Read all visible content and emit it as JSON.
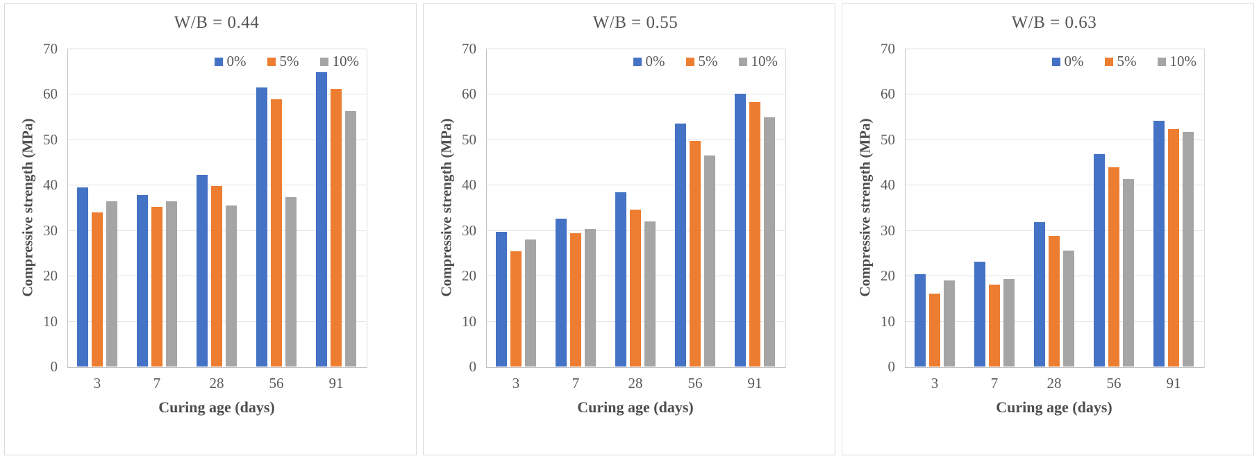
{
  "figure": {
    "description": "Three grouped bar charts of concrete compressive strength vs curing age for different water/binder ratios",
    "background": "#ffffff",
    "panel_border": "#d9d9d9"
  },
  "chart_data": [
    {
      "type": "bar",
      "title": "W/B = 0.44",
      "xlabel": "Curing age (days)",
      "ylabel": "Compressive strength (MPa)",
      "ylim": [
        0,
        70
      ],
      "yticks": [
        0,
        10,
        20,
        30,
        40,
        50,
        60,
        70
      ],
      "grid": true,
      "legend_position": "top-right-inside",
      "categories": [
        "3",
        "7",
        "28",
        "56",
        "91"
      ],
      "series": [
        {
          "name": "0%",
          "color": "#4472C4",
          "values": [
            39.5,
            37.7,
            42.2,
            61.4,
            64.8
          ]
        },
        {
          "name": "5%",
          "color": "#ED7D31",
          "values": [
            34.0,
            35.2,
            39.8,
            58.8,
            61.2
          ]
        },
        {
          "name": "10%",
          "color": "#A5A5A5",
          "values": [
            36.3,
            36.4,
            35.4,
            37.3,
            56.2
          ]
        }
      ]
    },
    {
      "type": "bar",
      "title": "W/B = 0.55",
      "xlabel": "Curing age (days)",
      "ylabel": "Compressive strength (MPa)",
      "ylim": [
        0,
        70
      ],
      "yticks": [
        0,
        10,
        20,
        30,
        40,
        50,
        60,
        70
      ],
      "grid": true,
      "legend_position": "top-right-inside",
      "categories": [
        "3",
        "7",
        "28",
        "56",
        "91"
      ],
      "series": [
        {
          "name": "0%",
          "color": "#4472C4",
          "values": [
            29.6,
            32.6,
            38.4,
            53.5,
            60.1
          ]
        },
        {
          "name": "5%",
          "color": "#ED7D31",
          "values": [
            25.3,
            29.4,
            34.6,
            49.6,
            58.2
          ]
        },
        {
          "name": "10%",
          "color": "#A5A5A5",
          "values": [
            28.0,
            30.3,
            31.9,
            46.5,
            54.8
          ]
        }
      ]
    },
    {
      "type": "bar",
      "title": "W/B = 0.63",
      "xlabel": "Curing age (days)",
      "ylabel": "Compressive strength (MPa)",
      "ylim": [
        0,
        70
      ],
      "yticks": [
        0,
        10,
        20,
        30,
        40,
        50,
        60,
        70
      ],
      "grid": true,
      "legend_position": "top-right-inside",
      "categories": [
        "3",
        "7",
        "28",
        "56",
        "91"
      ],
      "series": [
        {
          "name": "0%",
          "color": "#4472C4",
          "values": [
            20.3,
            23.1,
            31.8,
            46.8,
            54.1
          ]
        },
        {
          "name": "5%",
          "color": "#ED7D31",
          "values": [
            16.0,
            18.1,
            28.7,
            43.9,
            52.2
          ]
        },
        {
          "name": "10%",
          "color": "#A5A5A5",
          "values": [
            18.9,
            19.2,
            25.6,
            41.3,
            51.7
          ]
        }
      ]
    }
  ]
}
